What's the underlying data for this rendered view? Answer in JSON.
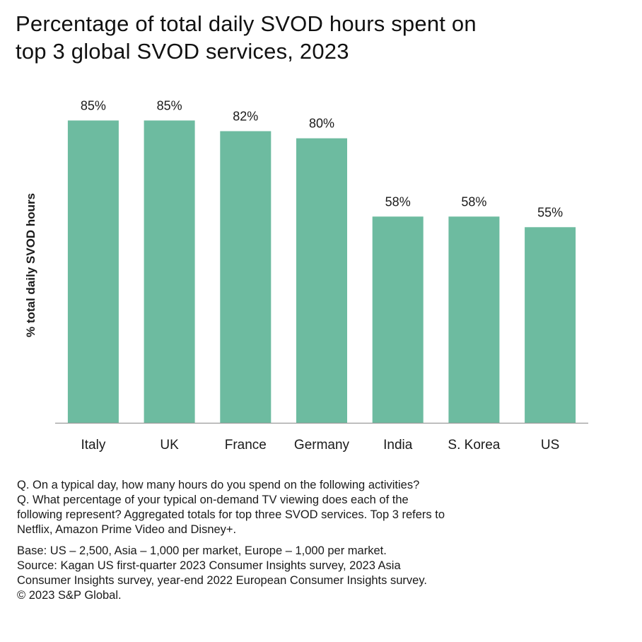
{
  "title_lines": [
    "Percentage of total daily SVOD hours spent on",
    "top 3 global SVOD services, 2023"
  ],
  "chart_data": {
    "type": "bar",
    "title": "Percentage of total daily SVOD hours spent on top 3 global SVOD services, 2023",
    "ylabel": "% total daily SVOD hours",
    "xlabel": "",
    "categories": [
      "Italy",
      "UK",
      "France",
      "Germany",
      "India",
      "S. Korea",
      "US"
    ],
    "values": [
      85,
      85,
      82,
      80,
      58,
      58,
      55
    ],
    "data_labels": [
      "85%",
      "85%",
      "82%",
      "80%",
      "58%",
      "58%",
      "55%"
    ],
    "ylim": [
      0,
      100
    ],
    "grid": false,
    "legend": "none",
    "bar_color": "#6dbba0"
  },
  "notes": {
    "question_lines": [
      "Q. On a typical day, how many hours do you spend on the following activities?",
      "Q. What percentage of your typical on-demand TV viewing does each of the",
      "following represent? Aggregated totals for top three SVOD services. Top 3 refers to",
      "Netflix, Amazon Prime Video and Disney+."
    ],
    "source_lines": [
      "Base:  US – 2,500, Asia – 1,000 per market, Europe – 1,000 per market.",
      "Source: Kagan US first-quarter 2023 Consumer Insights survey, 2023 Asia",
      "Consumer Insights survey, year-end 2022 European Consumer Insights survey.",
      "© 2023 S&P Global."
    ]
  }
}
